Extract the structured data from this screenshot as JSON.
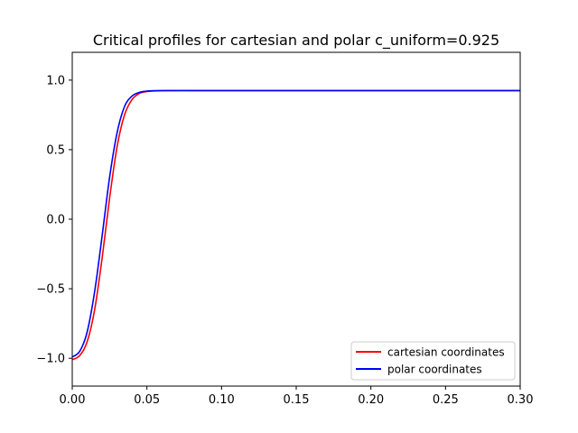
{
  "chart_data": {
    "type": "line",
    "title": "Critical profiles for cartesian and polar c_uniform=0.925",
    "xlabel": "",
    "ylabel": "",
    "xlim": [
      0.0,
      0.3
    ],
    "ylim": [
      -1.2,
      1.2
    ],
    "x_ticks": [
      0.0,
      0.05,
      0.1,
      0.15,
      0.2,
      0.25,
      0.3
    ],
    "x_tick_labels": [
      "0.00",
      "0.05",
      "0.10",
      "0.15",
      "0.20",
      "0.25",
      "0.30"
    ],
    "y_ticks": [
      -1.0,
      -0.5,
      0.0,
      0.5,
      1.0
    ],
    "y_tick_labels": [
      "−1.0",
      "−0.5",
      "0.0",
      "0.5",
      "1.0"
    ],
    "grid": false,
    "legend_position": "lower-right",
    "series": [
      {
        "name": "cartesian coordinates",
        "color": "#ff0000",
        "x": [
          0.0,
          0.005,
          0.01,
          0.015,
          0.02,
          0.025,
          0.03,
          0.035,
          0.04,
          0.045,
          0.05,
          0.055,
          0.06,
          0.07,
          0.08,
          0.1,
          0.15,
          0.2,
          0.25,
          0.3
        ],
        "y": [
          -1.01,
          -0.98,
          -0.88,
          -0.65,
          -0.28,
          0.15,
          0.52,
          0.75,
          0.86,
          0.905,
          0.918,
          0.922,
          0.924,
          0.925,
          0.925,
          0.925,
          0.925,
          0.925,
          0.925,
          0.925
        ]
      },
      {
        "name": "polar coordinates",
        "color": "#0000ff",
        "x": [
          0.0,
          0.005,
          0.01,
          0.015,
          0.02,
          0.025,
          0.03,
          0.035,
          0.04,
          0.045,
          0.05,
          0.055,
          0.06,
          0.07,
          0.08,
          0.1,
          0.15,
          0.2,
          0.25,
          0.3
        ],
        "y": [
          -0.99,
          -0.95,
          -0.81,
          -0.52,
          -0.12,
          0.3,
          0.62,
          0.81,
          0.885,
          0.912,
          0.921,
          0.924,
          0.925,
          0.925,
          0.925,
          0.925,
          0.925,
          0.925,
          0.925,
          0.925
        ]
      }
    ]
  }
}
